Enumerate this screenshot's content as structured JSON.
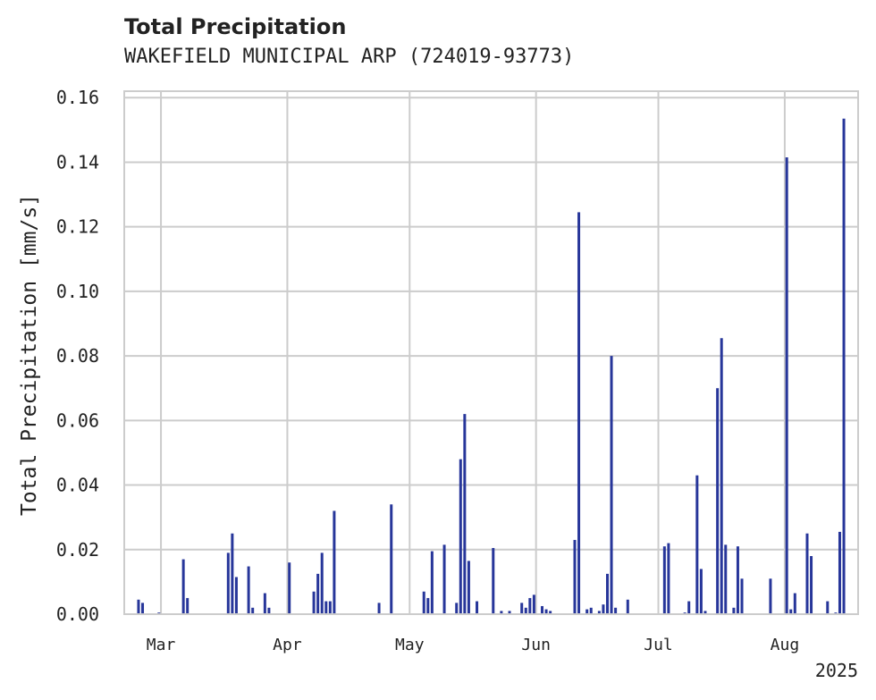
{
  "chart_data": {
    "type": "bar",
    "title": "Total Precipitation",
    "subtitle": "WAKEFIELD MUNICIPAL ARP (724019-93773)",
    "ylabel": "Total Precipitation [mm/s]",
    "xlabel": "",
    "year_label": "2025",
    "xlim": [
      "2025-02-20",
      "2025-08-19"
    ],
    "ylim": [
      0,
      0.162
    ],
    "grid": true,
    "bar_color": "#27369a",
    "grid_color": "#cccccc",
    "x_ticks": [
      {
        "label": "Mar",
        "date": "2025-03-01"
      },
      {
        "label": "Apr",
        "date": "2025-04-01"
      },
      {
        "label": "May",
        "date": "2025-05-01"
      },
      {
        "label": "Jun",
        "date": "2025-06-01"
      },
      {
        "label": "Jul",
        "date": "2025-07-01"
      },
      {
        "label": "Aug",
        "date": "2025-08-01"
      }
    ],
    "y_ticks": [
      "0.00",
      "0.02",
      "0.04",
      "0.06",
      "0.08",
      "0.10",
      "0.12",
      "0.14",
      "0.16"
    ],
    "points": [
      [
        "2025-02-23",
        0.0045
      ],
      [
        "2025-02-24",
        0.0035
      ],
      [
        "2025-02-28",
        0.0005
      ],
      [
        "2025-03-06",
        0.017
      ],
      [
        "2025-03-07",
        0.005
      ],
      [
        "2025-03-17",
        0.019
      ],
      [
        "2025-03-18",
        0.025
      ],
      [
        "2025-03-19",
        0.0115
      ],
      [
        "2025-03-22",
        0.0148
      ],
      [
        "2025-03-23",
        0.002
      ],
      [
        "2025-03-26",
        0.0065
      ],
      [
        "2025-03-27",
        0.002
      ],
      [
        "2025-04-01",
        0.016
      ],
      [
        "2025-04-07",
        0.007
      ],
      [
        "2025-04-08",
        0.0125
      ],
      [
        "2025-04-09",
        0.019
      ],
      [
        "2025-04-10",
        0.004
      ],
      [
        "2025-04-11",
        0.004
      ],
      [
        "2025-04-12",
        0.032
      ],
      [
        "2025-04-23",
        0.0035
      ],
      [
        "2025-04-26",
        0.034
      ],
      [
        "2025-05-04",
        0.007
      ],
      [
        "2025-05-05",
        0.005
      ],
      [
        "2025-05-06",
        0.0195
      ],
      [
        "2025-05-09",
        0.0215
      ],
      [
        "2025-05-12",
        0.0035
      ],
      [
        "2025-05-13",
        0.048
      ],
      [
        "2025-05-14",
        0.062
      ],
      [
        "2025-05-15",
        0.0165
      ],
      [
        "2025-05-17",
        0.004
      ],
      [
        "2025-05-21",
        0.0205
      ],
      [
        "2025-05-23",
        0.001
      ],
      [
        "2025-05-25",
        0.001
      ],
      [
        "2025-05-28",
        0.0035
      ],
      [
        "2025-05-29",
        0.002
      ],
      [
        "2025-05-30",
        0.005
      ],
      [
        "2025-05-31",
        0.006
      ],
      [
        "2025-06-02",
        0.0025
      ],
      [
        "2025-06-03",
        0.0015
      ],
      [
        "2025-06-04",
        0.001
      ],
      [
        "2025-06-10",
        0.023
      ],
      [
        "2025-06-11",
        0.1245
      ],
      [
        "2025-06-13",
        0.0015
      ],
      [
        "2025-06-14",
        0.002
      ],
      [
        "2025-06-16",
        0.001
      ],
      [
        "2025-06-17",
        0.003
      ],
      [
        "2025-06-18",
        0.0125
      ],
      [
        "2025-06-19",
        0.08
      ],
      [
        "2025-06-20",
        0.002
      ],
      [
        "2025-06-23",
        0.0045
      ],
      [
        "2025-07-02",
        0.021
      ],
      [
        "2025-07-03",
        0.022
      ],
      [
        "2025-07-07",
        0.0005
      ],
      [
        "2025-07-08",
        0.004
      ],
      [
        "2025-07-10",
        0.043
      ],
      [
        "2025-07-11",
        0.014
      ],
      [
        "2025-07-12",
        0.001
      ],
      [
        "2025-07-15",
        0.07
      ],
      [
        "2025-07-16",
        0.0855
      ],
      [
        "2025-07-17",
        0.0215
      ],
      [
        "2025-07-19",
        0.002
      ],
      [
        "2025-07-20",
        0.021
      ],
      [
        "2025-07-21",
        0.011
      ],
      [
        "2025-07-28",
        0.011
      ],
      [
        "2025-08-01",
        0.1415
      ],
      [
        "2025-08-02",
        0.0015
      ],
      [
        "2025-08-03",
        0.0065
      ],
      [
        "2025-08-06",
        0.025
      ],
      [
        "2025-08-07",
        0.018
      ],
      [
        "2025-08-11",
        0.004
      ],
      [
        "2025-08-13",
        0.0005
      ],
      [
        "2025-08-14",
        0.0255
      ],
      [
        "2025-08-15",
        0.1535
      ]
    ]
  }
}
